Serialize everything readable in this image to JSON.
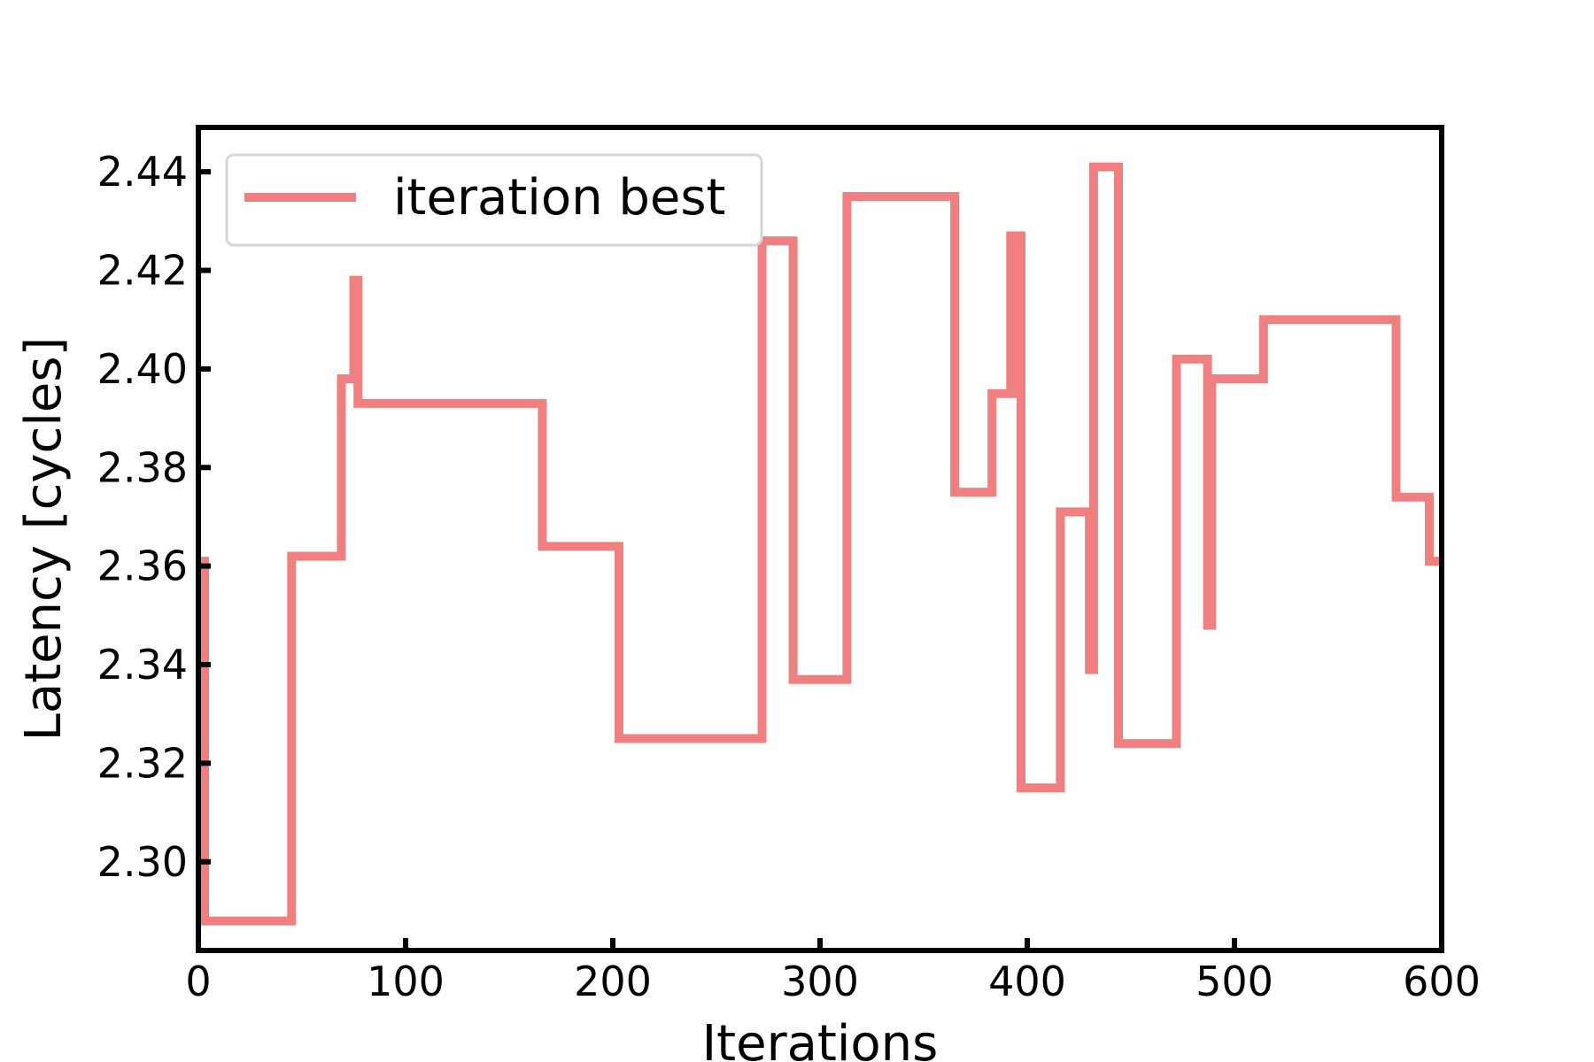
{
  "chart_data": {
    "type": "line",
    "title": "",
    "xlabel": "Iterations",
    "ylabel": "Latency [cycles]",
    "xlim": [
      0,
      600
    ],
    "ylim": [
      2.282,
      2.449
    ],
    "xticks": [
      0,
      100,
      200,
      300,
      400,
      500,
      600
    ],
    "yticks": [
      2.3,
      2.32,
      2.34,
      2.36,
      2.38,
      2.4,
      2.42,
      2.44
    ],
    "xtick_labels": [
      "0",
      "100",
      "200",
      "300",
      "400",
      "500",
      "600"
    ],
    "ytick_labels": [
      "2.30",
      "2.32",
      "2.34",
      "2.36",
      "2.38",
      "2.40",
      "2.42",
      "2.44"
    ],
    "grid": false,
    "legend": {
      "position": "upper-left"
    },
    "series": [
      {
        "name": "iteration best",
        "color": "#f08080",
        "step": true,
        "x": [
          0,
          3,
          45,
          69,
          74,
          75,
          77,
          166,
          203,
          272,
          287,
          313,
          365,
          383,
          392,
          393,
          395,
          397,
          399,
          416,
          430,
          432,
          434,
          444,
          472,
          487,
          489,
          514,
          578,
          594,
          600
        ],
        "y": [
          2.361,
          2.288,
          2.362,
          2.398,
          2.398,
          2.418,
          2.393,
          2.364,
          2.325,
          2.426,
          2.337,
          2.435,
          2.375,
          2.395,
          2.427,
          2.395,
          2.427,
          2.315,
          2.315,
          2.371,
          2.339,
          2.441,
          2.441,
          2.324,
          2.402,
          2.348,
          2.398,
          2.41,
          2.374,
          2.361,
          2.361
        ]
      }
    ]
  }
}
